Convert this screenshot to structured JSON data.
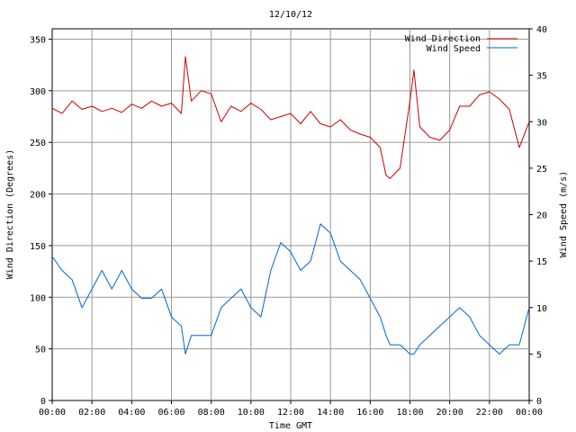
{
  "chart_data": {
    "type": "line",
    "title": "12/10/12",
    "xlabel": "Time GMT",
    "ylabel_left": "Wind Direction (Degrees)",
    "ylabel_right": "Wind Speed (m/s)",
    "x_range": [
      "00:00",
      "24:00"
    ],
    "x_tick_labels": [
      "00:00",
      "02:00",
      "04:00",
      "06:00",
      "08:00",
      "10:00",
      "12:00",
      "14:00",
      "16:00",
      "18:00",
      "20:00",
      "22:00",
      "00:00"
    ],
    "ylim_left": [
      0,
      360
    ],
    "yticks_left": [
      0,
      50,
      100,
      150,
      200,
      250,
      300,
      350
    ],
    "ylim_right": [
      0,
      40
    ],
    "yticks_right": [
      0,
      5,
      10,
      15,
      20,
      25,
      30,
      35,
      40
    ],
    "grid": true,
    "legend_position": "top-right",
    "x_hours": [
      0,
      0.5,
      1,
      1.5,
      2,
      2.5,
      3,
      3.5,
      4,
      4.5,
      5,
      5.5,
      6,
      6.5,
      6.7,
      7,
      7.5,
      8,
      8.5,
      9,
      9.5,
      10,
      10.5,
      11,
      11.5,
      12,
      12.5,
      13,
      13.5,
      14,
      14.5,
      15,
      15.5,
      16,
      16.5,
      16.8,
      17,
      17.5,
      18,
      18.2,
      18.5,
      19,
      19.5,
      20,
      20.5,
      21,
      21.5,
      22,
      22.5,
      23,
      23.5,
      24
    ],
    "series": [
      {
        "name": "Wind Direction",
        "axis": "left",
        "color": "#cc0000",
        "values": [
          283,
          278,
          290,
          282,
          285,
          280,
          283,
          279,
          287,
          283,
          290,
          285,
          288,
          278,
          333,
          290,
          300,
          297,
          270,
          285,
          280,
          288,
          282,
          272,
          275,
          278,
          268,
          280,
          268,
          265,
          272,
          262,
          258,
          255,
          245,
          218,
          215,
          225,
          290,
          320,
          265,
          255,
          252,
          262,
          285,
          285,
          296,
          299,
          292,
          282,
          245,
          270
        ]
      },
      {
        "name": "Wind Speed",
        "axis": "right",
        "color": "#0066cc",
        "values": [
          15.5,
          14,
          13,
          10,
          12,
          14,
          12,
          14,
          12,
          11,
          11,
          12,
          9,
          8,
          5,
          7,
          7,
          7,
          10,
          11,
          12,
          10,
          9,
          14,
          17,
          16,
          14,
          15,
          19,
          18,
          15,
          14,
          13,
          11,
          9,
          7,
          6,
          6,
          5,
          5,
          6,
          7,
          8,
          9,
          10,
          9,
          7,
          6,
          5,
          6,
          6,
          10
        ]
      }
    ]
  }
}
